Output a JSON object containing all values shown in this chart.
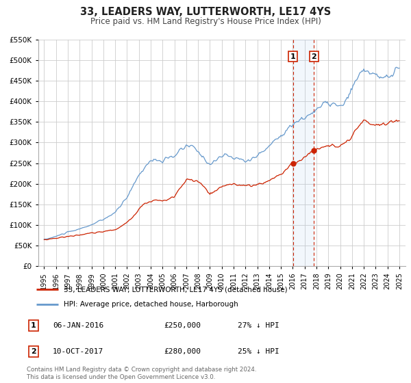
{
  "title": "33, LEADERS WAY, LUTTERWORTH, LE17 4YS",
  "subtitle": "Price paid vs. HM Land Registry's House Price Index (HPI)",
  "legend_line1": "33, LEADERS WAY, LUTTERWORTH, LE17 4YS (detached house)",
  "legend_line2": "HPI: Average price, detached house, Harborough",
  "sale1_date": "06-JAN-2016",
  "sale1_price": 250000,
  "sale1_hpi": "27% ↓ HPI",
  "sale2_date": "10-OCT-2017",
  "sale2_price": 280000,
  "sale2_hpi": "25% ↓ HPI",
  "footnote": "Contains HM Land Registry data © Crown copyright and database right 2024.\nThis data is licensed under the Open Government Licence v3.0.",
  "hpi_color": "#6699cc",
  "price_color": "#cc2200",
  "sale_dot_color": "#cc2200",
  "vline1_x": 2016.017,
  "vline2_x": 2017.78,
  "ylim_min": 0,
  "ylim_max": 550000,
  "xlim_min": 1994.5,
  "xlim_max": 2025.5,
  "hpi_anchors": [
    [
      1995.0,
      65000
    ],
    [
      1995.5,
      68000
    ],
    [
      1996.0,
      72000
    ],
    [
      1996.5,
      78000
    ],
    [
      1997.0,
      82000
    ],
    [
      1997.5,
      86000
    ],
    [
      1998.0,
      90000
    ],
    [
      1998.5,
      96000
    ],
    [
      1999.0,
      100000
    ],
    [
      1999.5,
      107000
    ],
    [
      2000.0,
      113000
    ],
    [
      2000.5,
      122000
    ],
    [
      2001.0,
      130000
    ],
    [
      2001.5,
      148000
    ],
    [
      2002.0,
      168000
    ],
    [
      2002.5,
      195000
    ],
    [
      2003.0,
      220000
    ],
    [
      2003.5,
      242000
    ],
    [
      2004.0,
      255000
    ],
    [
      2004.5,
      258000
    ],
    [
      2005.0,
      255000
    ],
    [
      2005.5,
      260000
    ],
    [
      2006.0,
      268000
    ],
    [
      2006.5,
      280000
    ],
    [
      2007.0,
      292000
    ],
    [
      2007.5,
      290000
    ],
    [
      2008.0,
      278000
    ],
    [
      2008.5,
      262000
    ],
    [
      2009.0,
      248000
    ],
    [
      2009.5,
      256000
    ],
    [
      2010.0,
      268000
    ],
    [
      2010.5,
      268000
    ],
    [
      2011.0,
      262000
    ],
    [
      2011.5,
      260000
    ],
    [
      2012.0,
      256000
    ],
    [
      2012.5,
      260000
    ],
    [
      2013.0,
      268000
    ],
    [
      2013.5,
      278000
    ],
    [
      2014.0,
      292000
    ],
    [
      2014.5,
      306000
    ],
    [
      2015.0,
      318000
    ],
    [
      2015.5,
      332000
    ],
    [
      2016.0,
      342000
    ],
    [
      2016.017,
      343000
    ],
    [
      2016.5,
      352000
    ],
    [
      2017.0,
      360000
    ],
    [
      2017.78,
      375000
    ],
    [
      2018.0,
      380000
    ],
    [
      2018.5,
      390000
    ],
    [
      2019.0,
      396000
    ],
    [
      2019.5,
      392000
    ],
    [
      2020.0,
      385000
    ],
    [
      2020.5,
      400000
    ],
    [
      2021.0,
      428000
    ],
    [
      2021.5,
      460000
    ],
    [
      2022.0,
      478000
    ],
    [
      2022.5,
      472000
    ],
    [
      2023.0,
      460000
    ],
    [
      2023.5,
      455000
    ],
    [
      2024.0,
      458000
    ],
    [
      2024.5,
      470000
    ],
    [
      2025.0,
      480000
    ]
  ],
  "price_anchors": [
    [
      1995.0,
      64000
    ],
    [
      1995.5,
      66000
    ],
    [
      1996.0,
      68000
    ],
    [
      1996.5,
      70000
    ],
    [
      1997.0,
      72000
    ],
    [
      1997.5,
      74000
    ],
    [
      1998.0,
      76000
    ],
    [
      1998.5,
      78000
    ],
    [
      1999.0,
      80000
    ],
    [
      1999.5,
      82000
    ],
    [
      2000.0,
      84000
    ],
    [
      2000.5,
      86000
    ],
    [
      2001.0,
      89000
    ],
    [
      2001.5,
      96000
    ],
    [
      2002.0,
      106000
    ],
    [
      2002.5,
      120000
    ],
    [
      2003.0,
      140000
    ],
    [
      2003.5,
      152000
    ],
    [
      2004.0,
      158000
    ],
    [
      2004.5,
      160000
    ],
    [
      2005.0,
      158000
    ],
    [
      2005.5,
      162000
    ],
    [
      2006.0,
      170000
    ],
    [
      2006.5,
      188000
    ],
    [
      2007.0,
      210000
    ],
    [
      2007.5,
      208000
    ],
    [
      2008.0,
      205000
    ],
    [
      2008.5,
      192000
    ],
    [
      2009.0,
      175000
    ],
    [
      2009.5,
      182000
    ],
    [
      2010.0,
      192000
    ],
    [
      2010.5,
      198000
    ],
    [
      2011.0,
      200000
    ],
    [
      2011.5,
      198000
    ],
    [
      2012.0,
      194000
    ],
    [
      2012.5,
      196000
    ],
    [
      2013.0,
      198000
    ],
    [
      2013.5,
      202000
    ],
    [
      2014.0,
      208000
    ],
    [
      2014.5,
      216000
    ],
    [
      2015.0,
      224000
    ],
    [
      2015.5,
      235000
    ],
    [
      2016.017,
      250000
    ],
    [
      2016.5,
      256000
    ],
    [
      2017.0,
      265000
    ],
    [
      2017.78,
      280000
    ],
    [
      2018.0,
      283000
    ],
    [
      2018.5,
      289000
    ],
    [
      2019.0,
      294000
    ],
    [
      2019.5,
      291000
    ],
    [
      2020.0,
      288000
    ],
    [
      2020.5,
      298000
    ],
    [
      2021.0,
      314000
    ],
    [
      2021.5,
      334000
    ],
    [
      2022.0,
      352000
    ],
    [
      2022.5,
      348000
    ],
    [
      2023.0,
      343000
    ],
    [
      2023.5,
      342000
    ],
    [
      2024.0,
      346000
    ],
    [
      2024.5,
      352000
    ],
    [
      2025.0,
      355000
    ]
  ]
}
